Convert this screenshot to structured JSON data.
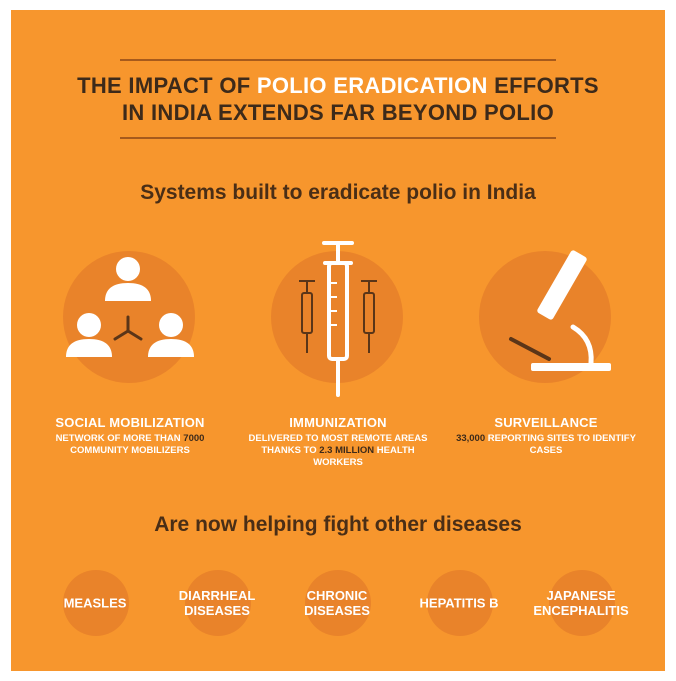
{
  "header": {
    "line1_before": "THE IMPACT OF ",
    "line1_highlight": "POLIO ERADICATION",
    "line1_after": " EFFORTS",
    "line2": "IN INDIA EXTENDS FAR BEYOND POLIO"
  },
  "section_systems": {
    "heading": "Systems built to eradicate polio in India"
  },
  "systems": [
    {
      "title": "SOCIAL MOBILIZATION",
      "desc_before": "NETWORK OF MORE THAN ",
      "desc_bold": "7000",
      "desc_after": " COMMUNITY MOBILIZERS",
      "icon": "people-network-icon"
    },
    {
      "title": "IMMUNIZATION",
      "desc_before": "DELIVERED TO MOST REMOTE AREAS THANKS TO ",
      "desc_bold": "2.3 MILLION",
      "desc_after": " HEALTH WORKERS",
      "icon": "syringe-icon"
    },
    {
      "title": "SURVEILLANCE",
      "desc_before": "",
      "desc_bold": "33,000",
      "desc_after": " REPORTING SITES TO IDENTIFY CASES",
      "icon": "microscope-icon"
    }
  ],
  "section_diseases": {
    "heading": "Are now helping fight other diseases"
  },
  "diseases": [
    "MEASLES",
    "DIARRHEAL\nDISEASES",
    "CHRONIC\nDISEASES",
    "HEPATITIS B",
    "JAPANESE\nENCEPHALITIS"
  ],
  "colors": {
    "background": "#f7962d",
    "circle": "#e9832a",
    "dark_text": "#3d2a1a",
    "light_text": "#ffffff"
  }
}
